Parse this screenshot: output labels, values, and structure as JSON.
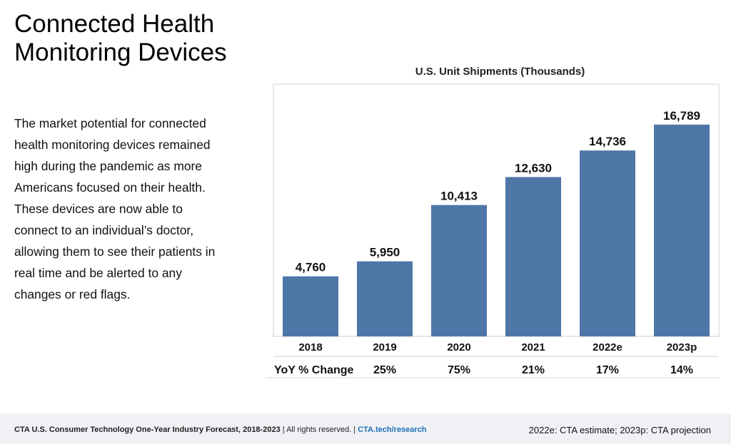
{
  "heading": {
    "line1": "Connected Health",
    "line2": "Monitoring Devices"
  },
  "description": "The market potential for connected health monitoring devices remained high during the pandemic as more Americans focused on their health. These devices are now able to connect to an individual’s doctor, allowing them to see their patients in real time and be alerted to any changes or red flags.",
  "chart_data": {
    "type": "bar",
    "title": "U.S. Unit Shipments (Thousands)",
    "categories": [
      "2018",
      "2019",
      "2020",
      "2021",
      "2022e",
      "2023p"
    ],
    "values": [
      4760,
      5950,
      10413,
      12630,
      14736,
      16789
    ],
    "value_labels": [
      "4,760",
      "5,950",
      "10,413",
      "12,630",
      "14,736",
      "16,789"
    ],
    "yoy_title": "YoY % Change",
    "yoy": [
      "25%",
      "75%",
      "21%",
      "17%",
      "14%"
    ],
    "ylim": [
      0,
      20000
    ],
    "bar_color": "#4e77a8",
    "grid": false,
    "legend": "none"
  },
  "footer": {
    "source": "CTA U.S. Consumer Technology One-Year Industry Forecast, 2018-2023",
    "rights": "All rights reserved.",
    "link": "CTA.tech/research",
    "note": "2022e: CTA estimate; 2023p: CTA projection"
  }
}
